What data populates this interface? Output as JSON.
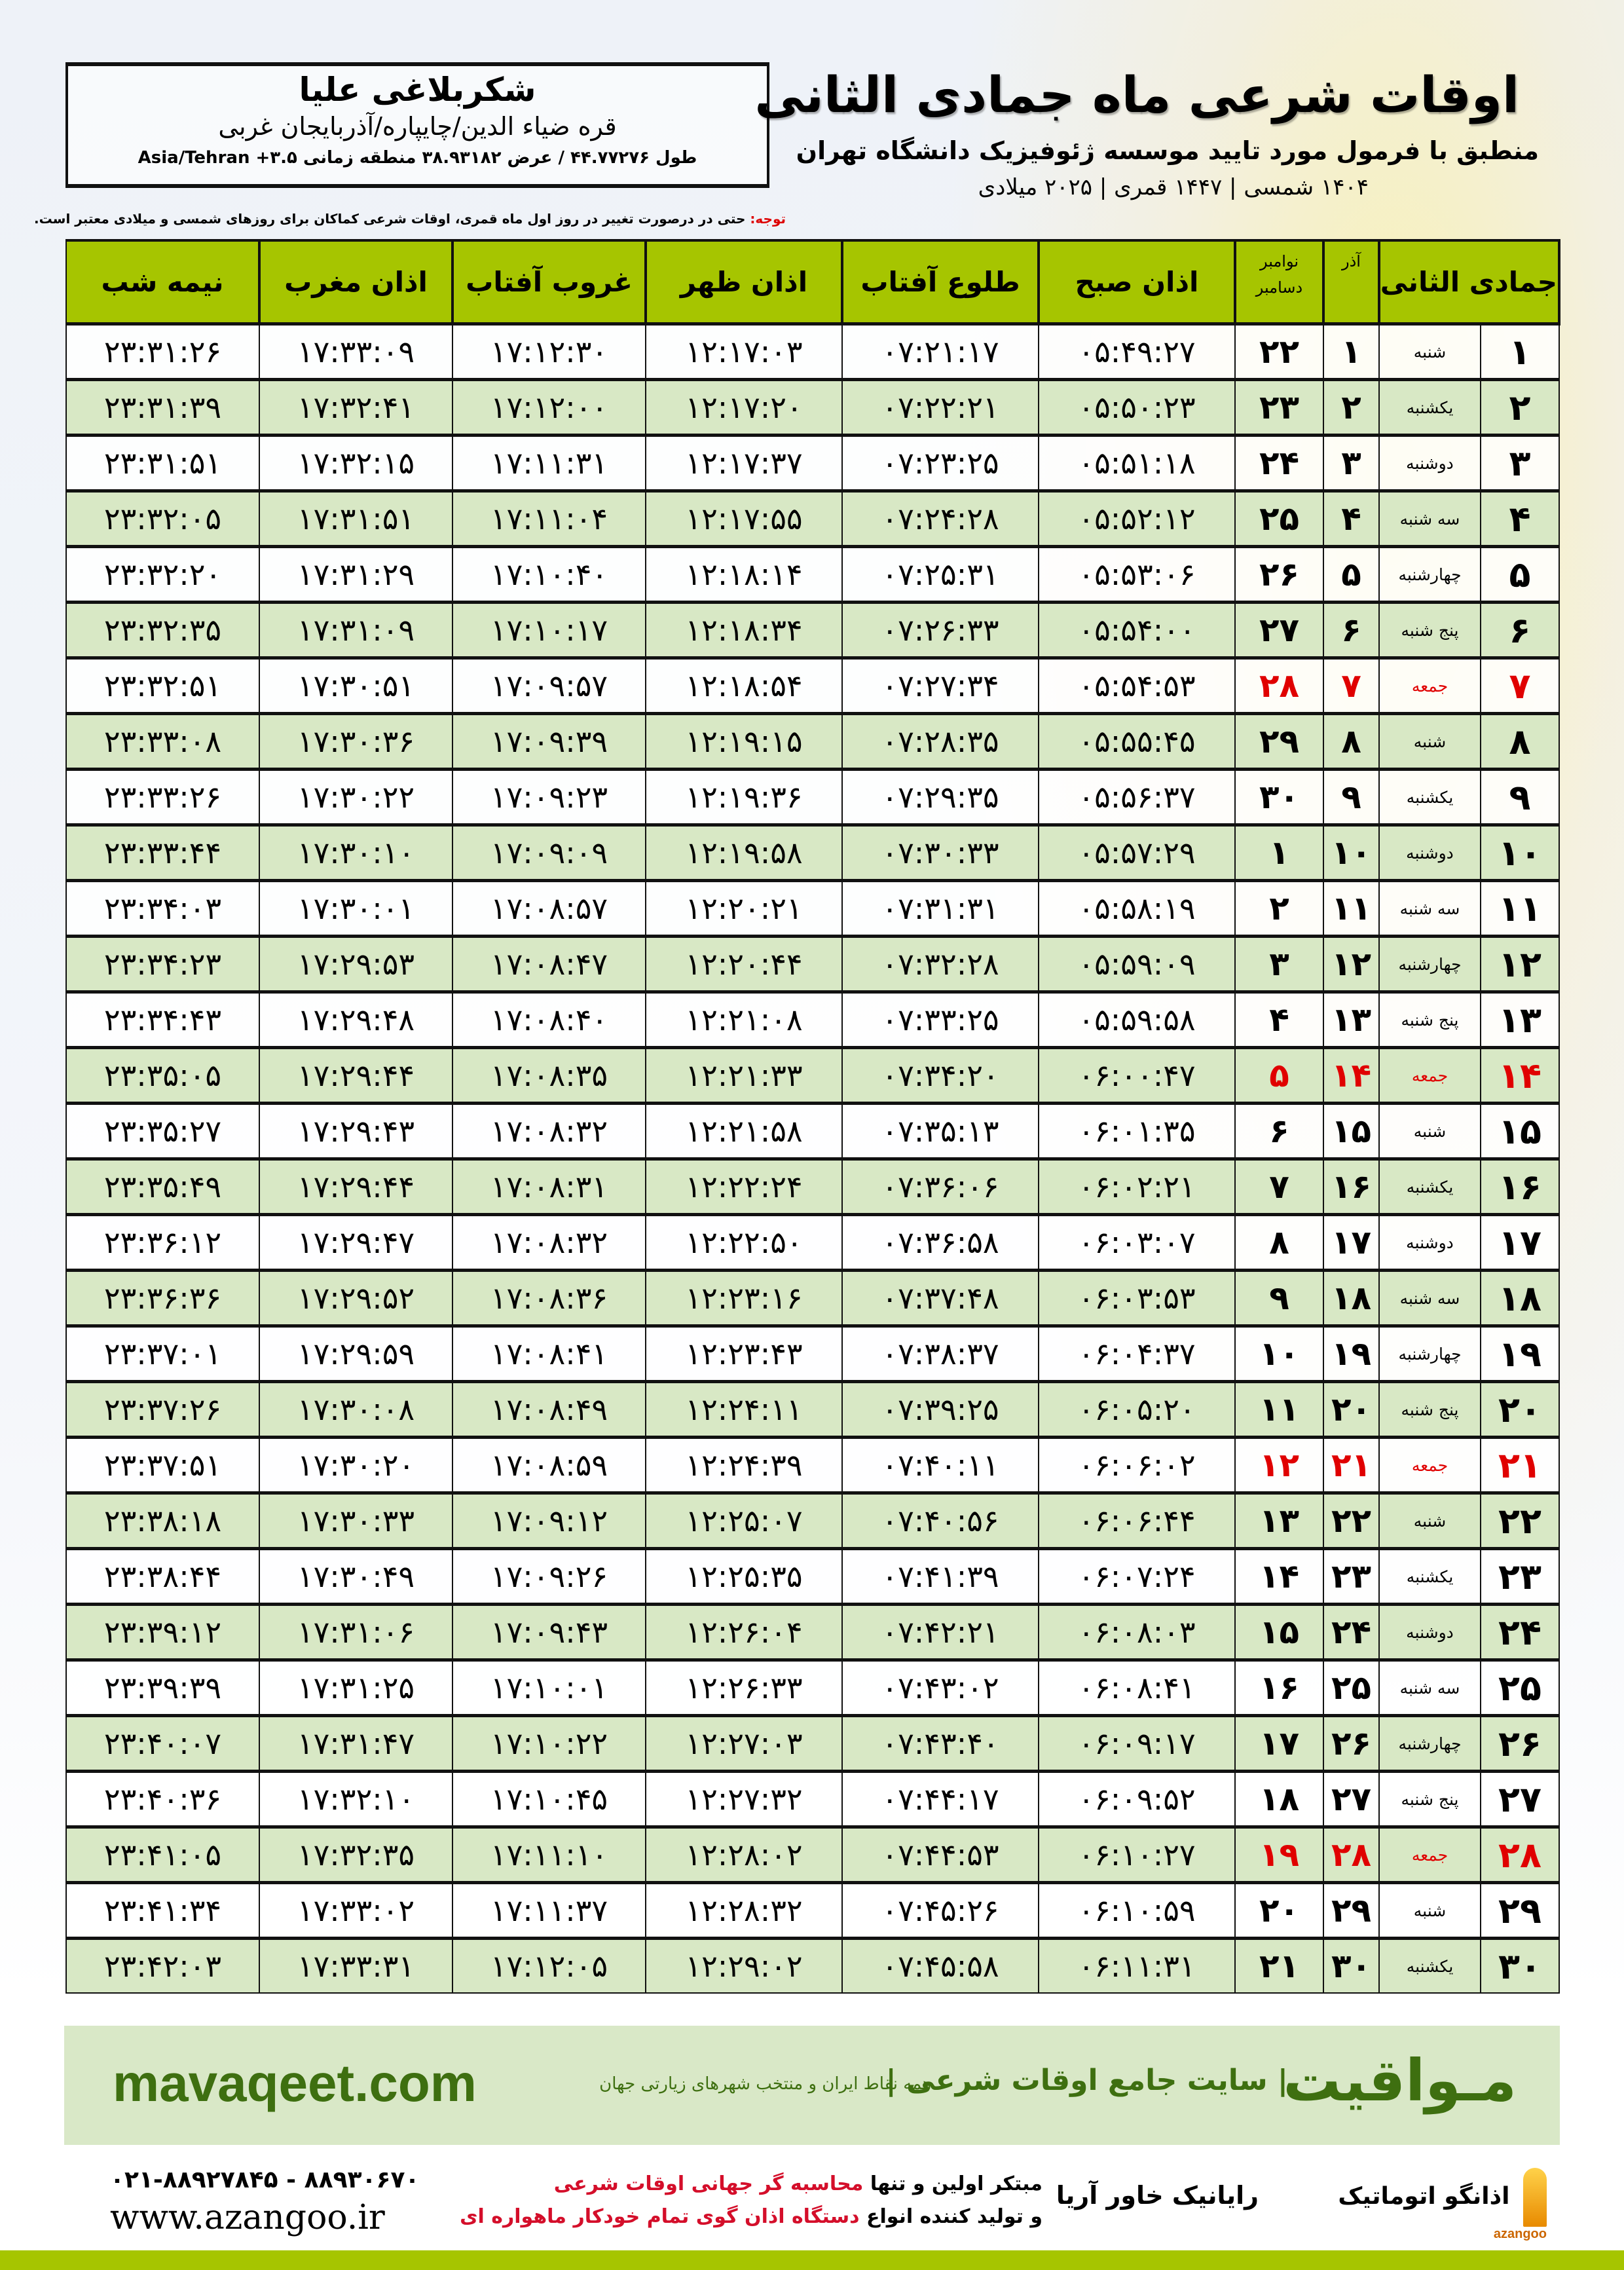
{
  "location": {
    "city": "شکربلاغی علیا",
    "province": "قره ضیاء الدین/چایپاره/آذربایجان غربی",
    "coords": "طول ۴۴.۷۷۲۷۶ / عرض ۳۸.۹۳۱۸۲ منطقه زمانی ۳.۵+ Asia/Tehran"
  },
  "title": {
    "main": "اوقات شرعی ماه جمادی الثانی",
    "subtitle": "منطبق با فرمول مورد تایید موسسه ژئوفیزیک دانشگاه تهران",
    "years": "۱۴۰۴ شمسی | ۱۴۴۷ قمری | ۲۰۲۵ میلادی"
  },
  "note": {
    "label": "توجه:",
    "text": " حتی در درصورت تغییر در روز اول ماه قمری، اوقات شرعی کماکان برای روزهای شمسی و میلادی معتبر است."
  },
  "table": {
    "headers": {
      "hijri": "جمادی الثانی",
      "azar": "آذر",
      "greg_top": "نوامبر",
      "greg_bottom": "دسامبر",
      "fajr": "اذان صبح",
      "sunrise": "طلوع آفتاب",
      "dhuhr": "اذان ظهر",
      "sunset": "غروب آفتاب",
      "maghrib": "اذان مغرب",
      "midnight": "نیمه شب"
    },
    "holiday_color": "#e00000",
    "header_color": "#a6c500",
    "rows": [
      [
        "۱",
        "شنبه",
        "۱",
        "۲۲",
        "۰۵:۴۹:۲۷",
        "۰۷:۲۱:۱۷",
        "۱۲:۱۷:۰۳",
        "۱۷:۱۲:۳۰",
        "۱۷:۳۳:۰۹",
        "۲۳:۳۱:۲۶"
      ],
      [
        "۲",
        "یکشنبه",
        "۲",
        "۲۳",
        "۰۵:۵۰:۲۳",
        "۰۷:۲۲:۲۱",
        "۱۲:۱۷:۲۰",
        "۱۷:۱۲:۰۰",
        "۱۷:۳۲:۴۱",
        "۲۳:۳۱:۳۹"
      ],
      [
        "۳",
        "دوشنبه",
        "۳",
        "۲۴",
        "۰۵:۵۱:۱۸",
        "۰۷:۲۳:۲۵",
        "۱۲:۱۷:۳۷",
        "۱۷:۱۱:۳۱",
        "۱۷:۳۲:۱۵",
        "۲۳:۳۱:۵۱"
      ],
      [
        "۴",
        "سه شنبه",
        "۴",
        "۲۵",
        "۰۵:۵۲:۱۲",
        "۰۷:۲۴:۲۸",
        "۱۲:۱۷:۵۵",
        "۱۷:۱۱:۰۴",
        "۱۷:۳۱:۵۱",
        "۲۳:۳۲:۰۵"
      ],
      [
        "۵",
        "چهارشنبه",
        "۵",
        "۲۶",
        "۰۵:۵۳:۰۶",
        "۰۷:۲۵:۳۱",
        "۱۲:۱۸:۱۴",
        "۱۷:۱۰:۴۰",
        "۱۷:۳۱:۲۹",
        "۲۳:۳۲:۲۰"
      ],
      [
        "۶",
        "پنج شنبه",
        "۶",
        "۲۷",
        "۰۵:۵۴:۰۰",
        "۰۷:۲۶:۳۳",
        "۱۲:۱۸:۳۴",
        "۱۷:۱۰:۱۷",
        "۱۷:۳۱:۰۹",
        "۲۳:۳۲:۳۵"
      ],
      [
        "۷",
        "جمعه",
        "۷",
        "۲۸",
        "۰۵:۵۴:۵۳",
        "۰۷:۲۷:۳۴",
        "۱۲:۱۸:۵۴",
        "۱۷:۰۹:۵۷",
        "۱۷:۳۰:۵۱",
        "۲۳:۳۲:۵۱"
      ],
      [
        "۸",
        "شنبه",
        "۸",
        "۲۹",
        "۰۵:۵۵:۴۵",
        "۰۷:۲۸:۳۵",
        "۱۲:۱۹:۱۵",
        "۱۷:۰۹:۳۹",
        "۱۷:۳۰:۳۶",
        "۲۳:۳۳:۰۸"
      ],
      [
        "۹",
        "یکشنبه",
        "۹",
        "۳۰",
        "۰۵:۵۶:۳۷",
        "۰۷:۲۹:۳۵",
        "۱۲:۱۹:۳۶",
        "۱۷:۰۹:۲۳",
        "۱۷:۳۰:۲۲",
        "۲۳:۳۳:۲۶"
      ],
      [
        "۱۰",
        "دوشنبه",
        "۱۰",
        "۱",
        "۰۵:۵۷:۲۹",
        "۰۷:۳۰:۳۳",
        "۱۲:۱۹:۵۸",
        "۱۷:۰۹:۰۹",
        "۱۷:۳۰:۱۰",
        "۲۳:۳۳:۴۴"
      ],
      [
        "۱۱",
        "سه شنبه",
        "۱۱",
        "۲",
        "۰۵:۵۸:۱۹",
        "۰۷:۳۱:۳۱",
        "۱۲:۲۰:۲۱",
        "۱۷:۰۸:۵۷",
        "۱۷:۳۰:۰۱",
        "۲۳:۳۴:۰۳"
      ],
      [
        "۱۲",
        "چهارشنبه",
        "۱۲",
        "۳",
        "۰۵:۵۹:۰۹",
        "۰۷:۳۲:۲۸",
        "۱۲:۲۰:۴۴",
        "۱۷:۰۸:۴۷",
        "۱۷:۲۹:۵۳",
        "۲۳:۳۴:۲۳"
      ],
      [
        "۱۳",
        "پنج شنبه",
        "۱۳",
        "۴",
        "۰۵:۵۹:۵۸",
        "۰۷:۳۳:۲۵",
        "۱۲:۲۱:۰۸",
        "۱۷:۰۸:۴۰",
        "۱۷:۲۹:۴۸",
        "۲۳:۳۴:۴۳"
      ],
      [
        "۱۴",
        "جمعه",
        "۱۴",
        "۵",
        "۰۶:۰۰:۴۷",
        "۰۷:۳۴:۲۰",
        "۱۲:۲۱:۳۳",
        "۱۷:۰۸:۳۵",
        "۱۷:۲۹:۴۴",
        "۲۳:۳۵:۰۵"
      ],
      [
        "۱۵",
        "شنبه",
        "۱۵",
        "۶",
        "۰۶:۰۱:۳۵",
        "۰۷:۳۵:۱۳",
        "۱۲:۲۱:۵۸",
        "۱۷:۰۸:۳۲",
        "۱۷:۲۹:۴۳",
        "۲۳:۳۵:۲۷"
      ],
      [
        "۱۶",
        "یکشنبه",
        "۱۶",
        "۷",
        "۰۶:۰۲:۲۱",
        "۰۷:۳۶:۰۶",
        "۱۲:۲۲:۲۴",
        "۱۷:۰۸:۳۱",
        "۱۷:۲۹:۴۴",
        "۲۳:۳۵:۴۹"
      ],
      [
        "۱۷",
        "دوشنبه",
        "۱۷",
        "۸",
        "۰۶:۰۳:۰۷",
        "۰۷:۳۶:۵۸",
        "۱۲:۲۲:۵۰",
        "۱۷:۰۸:۳۲",
        "۱۷:۲۹:۴۷",
        "۲۳:۳۶:۱۲"
      ],
      [
        "۱۸",
        "سه شنبه",
        "۱۸",
        "۹",
        "۰۶:۰۳:۵۳",
        "۰۷:۳۷:۴۸",
        "۱۲:۲۳:۱۶",
        "۱۷:۰۸:۳۶",
        "۱۷:۲۹:۵۲",
        "۲۳:۳۶:۳۶"
      ],
      [
        "۱۹",
        "چهارشنبه",
        "۱۹",
        "۱۰",
        "۰۶:۰۴:۳۷",
        "۰۷:۳۸:۳۷",
        "۱۲:۲۳:۴۳",
        "۱۷:۰۸:۴۱",
        "۱۷:۲۹:۵۹",
        "۲۳:۳۷:۰۱"
      ],
      [
        "۲۰",
        "پنج شنبه",
        "۲۰",
        "۱۱",
        "۰۶:۰۵:۲۰",
        "۰۷:۳۹:۲۵",
        "۱۲:۲۴:۱۱",
        "۱۷:۰۸:۴۹",
        "۱۷:۳۰:۰۸",
        "۲۳:۳۷:۲۶"
      ],
      [
        "۲۱",
        "جمعه",
        "۲۱",
        "۱۲",
        "۰۶:۰۶:۰۲",
        "۰۷:۴۰:۱۱",
        "۱۲:۲۴:۳۹",
        "۱۷:۰۸:۵۹",
        "۱۷:۳۰:۲۰",
        "۲۳:۳۷:۵۱"
      ],
      [
        "۲۲",
        "شنبه",
        "۲۲",
        "۱۳",
        "۰۶:۰۶:۴۴",
        "۰۷:۴۰:۵۶",
        "۱۲:۲۵:۰۷",
        "۱۷:۰۹:۱۲",
        "۱۷:۳۰:۳۳",
        "۲۳:۳۸:۱۸"
      ],
      [
        "۲۳",
        "یکشنبه",
        "۲۳",
        "۱۴",
        "۰۶:۰۷:۲۴",
        "۰۷:۴۱:۳۹",
        "۱۲:۲۵:۳۵",
        "۱۷:۰۹:۲۶",
        "۱۷:۳۰:۴۹",
        "۲۳:۳۸:۴۴"
      ],
      [
        "۲۴",
        "دوشنبه",
        "۲۴",
        "۱۵",
        "۰۶:۰۸:۰۳",
        "۰۷:۴۲:۲۱",
        "۱۲:۲۶:۰۴",
        "۱۷:۰۹:۴۳",
        "۱۷:۳۱:۰۶",
        "۲۳:۳۹:۱۲"
      ],
      [
        "۲۵",
        "سه شنبه",
        "۲۵",
        "۱۶",
        "۰۶:۰۸:۴۱",
        "۰۷:۴۳:۰۲",
        "۱۲:۲۶:۳۳",
        "۱۷:۱۰:۰۱",
        "۱۷:۳۱:۲۵",
        "۲۳:۳۹:۳۹"
      ],
      [
        "۲۶",
        "چهارشنبه",
        "۲۶",
        "۱۷",
        "۰۶:۰۹:۱۷",
        "۰۷:۴۳:۴۰",
        "۱۲:۲۷:۰۳",
        "۱۷:۱۰:۲۲",
        "۱۷:۳۱:۴۷",
        "۲۳:۴۰:۰۷"
      ],
      [
        "۲۷",
        "پنج شنبه",
        "۲۷",
        "۱۸",
        "۰۶:۰۹:۵۲",
        "۰۷:۴۴:۱۷",
        "۱۲:۲۷:۳۲",
        "۱۷:۱۰:۴۵",
        "۱۷:۳۲:۱۰",
        "۲۳:۴۰:۳۶"
      ],
      [
        "۲۸",
        "جمعه",
        "۲۸",
        "۱۹",
        "۰۶:۱۰:۲۷",
        "۰۷:۴۴:۵۳",
        "۱۲:۲۸:۰۲",
        "۱۷:۱۱:۱۰",
        "۱۷:۳۲:۳۵",
        "۲۳:۴۱:۰۵"
      ],
      [
        "۲۹",
        "شنبه",
        "۲۹",
        "۲۰",
        "۰۶:۱۰:۵۹",
        "۰۷:۴۵:۲۶",
        "۱۲:۲۸:۳۲",
        "۱۷:۱۱:۳۷",
        "۱۷:۳۳:۰۲",
        "۲۳:۴۱:۳۴"
      ],
      [
        "۳۰",
        "یکشنبه",
        "۳۰",
        "۲۱",
        "۰۶:۱۱:۳۱",
        "۰۷:۴۵:۵۸",
        "۱۲:۲۹:۰۲",
        "۱۷:۱۲:۰۵",
        "۱۷:۳۳:۳۱",
        "۲۳:۴۲:۰۳"
      ]
    ]
  },
  "banner": {
    "brand": "مـواقیت",
    "slogan": "| سایت جامع اوقات شرعی |",
    "sub": "همه نقاط ایران و منتخب شهرهای زیارتی جهان",
    "site": "mavaqeet.com",
    "color": "#3e6f10"
  },
  "footer": {
    "phone": "۰۲۱-۸۸۹۲۷۸۴۵ - ۸۸۹۳۰۶۷۰",
    "www": "www.azangoo.ir",
    "line1_a": "مبتکر اولین و تنها ",
    "line1_b": "محاسبه گر جهانی اوقات شرعی",
    "line2_a": "و تولید کننده انواع ",
    "line2_b": "دستگاه اذان گوی تمام خودکار ماهواره ای",
    "logo_raianik": "رایانیک خاور آریا",
    "logo_azangoo": "اذانگو اتوماتیک",
    "logo_azangoo_en": "azangoo"
  }
}
